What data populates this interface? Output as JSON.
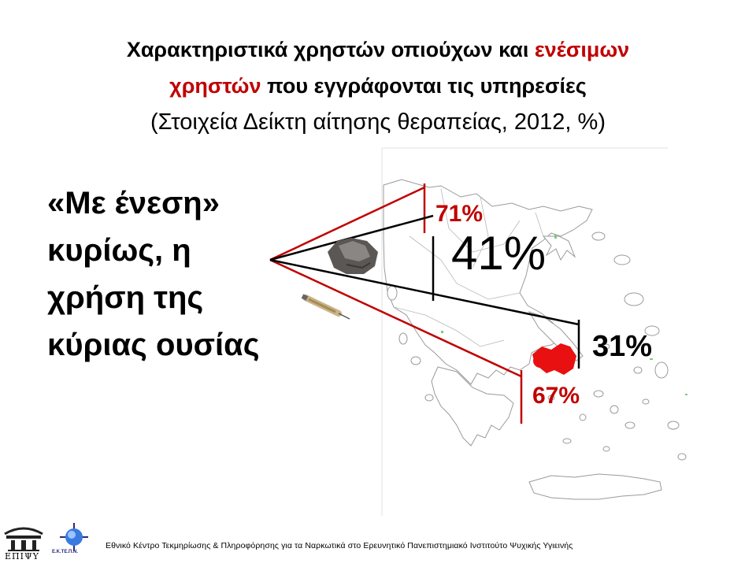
{
  "title": {
    "line1_a": "Χαρακτηριστικά χρηστών οπιούχων και ",
    "line1_highlight": "ενέσιμων",
    "line2_highlight": "χρηστών",
    "line2_b": " που εγγράφονται τις υπηρεσίες",
    "line3": "(Στοιχεία Δείκτη αίτησης θεραπείας, 2012, %)"
  },
  "left_text": {
    "line1": "«Με ένεση»",
    "line2": "κυρίως, η",
    "line3": "χρήση της",
    "line4": "κύριας ουσίας"
  },
  "stats": {
    "top_red": "71%",
    "top_black": "41%",
    "bottom_black": "31%",
    "bottom_red": "67%"
  },
  "footer": "Εθνικό Κέντρο Τεκμηρίωσης & Πληροφόρησης για τα Ναρκωτικά στο Ερευνητικό Πανεπιστημιακό Ινστιτούτο Ψυχικής Υγιεινής",
  "logos": {
    "left_label": "ΕΠΙΨΥ",
    "right_label": "Ε.Κ.ΤΕ.Π.Ν."
  },
  "colors": {
    "accent_red": "#c00000",
    "map_outline": "#9a9a9a",
    "region_red": "#e81010"
  },
  "icons": [
    "heroin-rock-icon",
    "syringe-icon",
    "greece-map"
  ]
}
